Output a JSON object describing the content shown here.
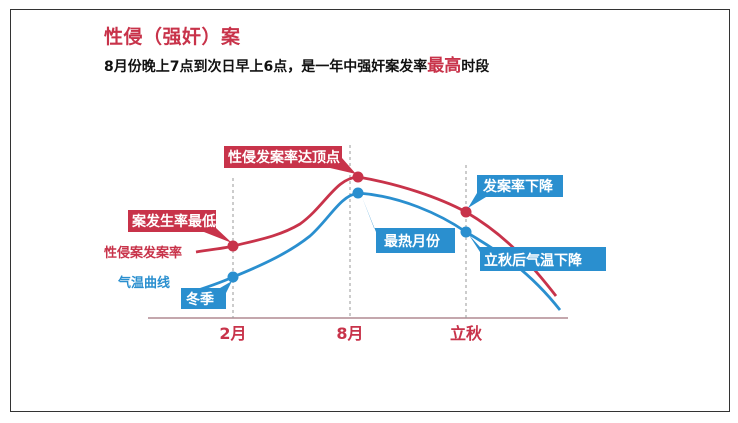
{
  "title": "性侵（强奸）案",
  "subtitle": {
    "prefix": "8月份晚上7点到次日早上6点，是一年中强奸案发率",
    "emphasis": "最高",
    "suffix": "时段"
  },
  "series": [
    {
      "name": "性侵案发案率",
      "color": "#c8334a"
    },
    {
      "name": "气温曲线",
      "color": "#2a8fcf"
    }
  ],
  "axis": {
    "labels": [
      "2月",
      "8月",
      "立秋"
    ]
  },
  "callouts": {
    "crime_low": "案发生率最低",
    "crime_peak": "性侵发案率达顶点",
    "crime_decline": "发案率下降",
    "temp_winter": "冬季",
    "temp_hottest": "最热月份",
    "temp_decline": "立秋后气温下降"
  },
  "colors": {
    "red": "#c8334a",
    "blue": "#2a8fcf",
    "axis": "#c4a7ad",
    "guide": "#999999"
  }
}
